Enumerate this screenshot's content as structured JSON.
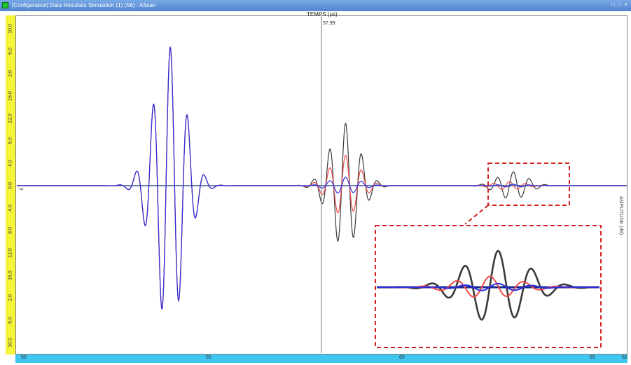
{
  "window": {
    "title": "[Configuration] Data Résultats Simulation (1) (S6) : AScan",
    "controls": "□ □ ×"
  },
  "plot": {
    "axis_title": "TEMPS (µs)",
    "cursor_value": "57,99",
    "left_marker": "-∞",
    "right_axis_label": "AMPLITUDE (dB)",
    "y_tick_labels": [
      "10,0",
      "6,0",
      "2,0",
      "16,0",
      "12,0",
      "8,0",
      "4,0",
      "0,0",
      "4,0",
      "8,0",
      "12,0",
      "16,0",
      "2,0",
      "6,0",
      "10,0"
    ],
    "x_tick_labels": [
      "50",
      "55",
      "60",
      "65",
      "60"
    ],
    "colors": {
      "black": "#3a3a3a",
      "red": "#ef4b4b",
      "blue": "#2a2ee0",
      "box": "#d21f1f"
    },
    "inset": {
      "zoom_of": "echo near 63 µs"
    }
  },
  "chart_data": {
    "type": "line",
    "xlabel": "TEMPS (µs)",
    "ylabel": "AMPLITUDE (dB)",
    "xlim": [
      50,
      66
    ],
    "cursor_x": 57.99,
    "series": [
      {
        "color": "#3a3a3a",
        "echoes": [
          {
            "center": 54.0,
            "amplitude": 1.0,
            "period": 0.45
          },
          {
            "center": 58.6,
            "amplitude": 0.45,
            "period": 0.42
          },
          {
            "center": 63.0,
            "amplitude": 0.1,
            "period": 0.42
          }
        ]
      },
      {
        "color": "#ef4b4b",
        "echoes": [
          {
            "center": 54.0,
            "amplitude": 1.0,
            "period": 0.45
          },
          {
            "center": 58.6,
            "amplitude": 0.22,
            "period": 0.42
          },
          {
            "center": 62.9,
            "amplitude": 0.03,
            "period": 0.42
          }
        ]
      },
      {
        "color": "#2a2ee0",
        "echoes": [
          {
            "center": 54.0,
            "amplitude": 1.0,
            "period": 0.45
          },
          {
            "center": 58.6,
            "amplitude": 0.06,
            "period": 0.42
          },
          {
            "center": 63.0,
            "amplitude": 0.01,
            "period": 0.42
          }
        ]
      }
    ]
  }
}
